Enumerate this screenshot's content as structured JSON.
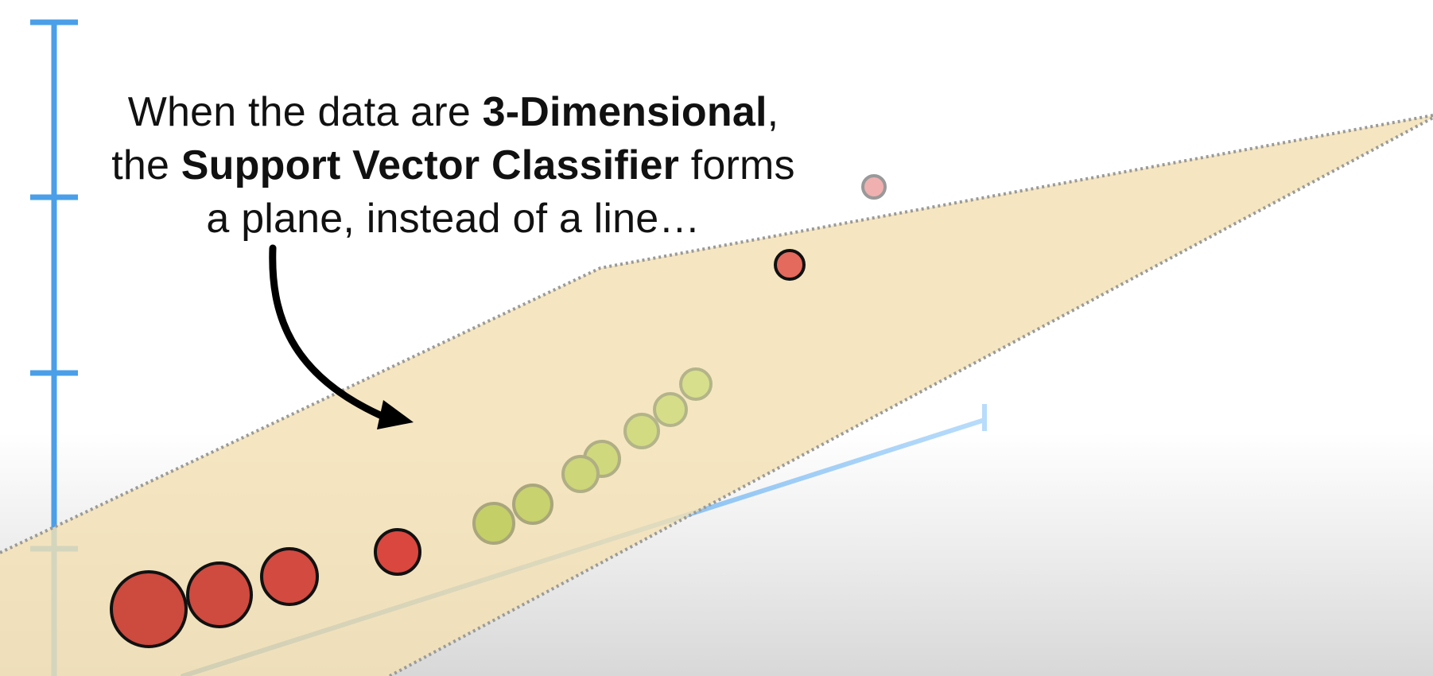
{
  "caption": {
    "line1_pre": "When the data are ",
    "line1_bold": "3-Dimensional",
    "line1_post": ",",
    "line2_pre": "the ",
    "line2_bold": "Support Vector Classifier",
    "line2_post": " forms",
    "line3": "a plane, instead of a line…"
  },
  "colors": {
    "axis_blue": "#4a9fe8",
    "plane_fill": "#f3e0b3",
    "plane_edge": "#9a9a9a",
    "red_point": "#d9473f",
    "green_point": "#c9d870",
    "pink_point": "#f0b0b0",
    "arrow": "#000000"
  },
  "icons": {
    "arrow": "curved-arrow"
  }
}
